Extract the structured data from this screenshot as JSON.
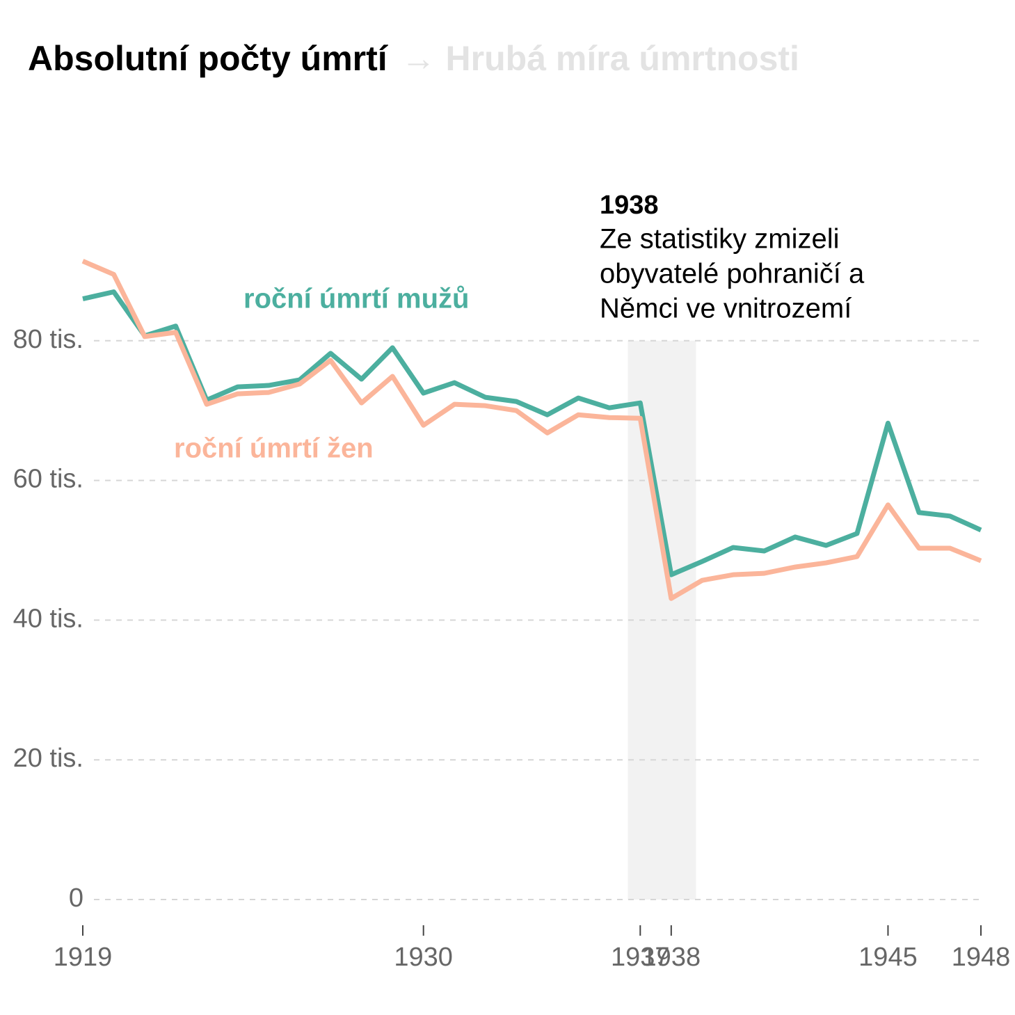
{
  "chart_data": {
    "type": "line",
    "title": "Absolutní počty úmrtí",
    "subtitle": "→ Hrubá míra úmrtnosti",
    "x": [
      1919,
      1920,
      1921,
      1922,
      1923,
      1924,
      1925,
      1926,
      1927,
      1928,
      1929,
      1930,
      1931,
      1932,
      1933,
      1934,
      1935,
      1936,
      1937,
      1938,
      1939,
      1940,
      1941,
      1942,
      1943,
      1944,
      1945,
      1946,
      1947,
      1948
    ],
    "series": [
      {
        "name": "roční úmrtí mužů",
        "color": "#4caf9f",
        "values": [
          86.0,
          87.0,
          80.7,
          82.1,
          71.5,
          73.4,
          73.6,
          74.4,
          78.2,
          74.5,
          79.0,
          72.5,
          74.0,
          71.9,
          71.3,
          69.4,
          71.8,
          70.4,
          71.1,
          46.5,
          48.4,
          50.4,
          49.9,
          51.9,
          50.7,
          52.4,
          68.2,
          55.4,
          54.9,
          52.9
        ]
      },
      {
        "name": "roční úmrtí žen",
        "color": "#fbb59a",
        "values": [
          91.4,
          89.5,
          80.6,
          81.2,
          70.9,
          72.4,
          72.6,
          73.8,
          77.2,
          71.1,
          74.9,
          67.9,
          70.9,
          70.7,
          70.0,
          66.8,
          69.4,
          69.0,
          68.9,
          43.1,
          45.7,
          46.5,
          46.7,
          47.6,
          48.2,
          49.1,
          56.5,
          50.3,
          50.3,
          48.5
        ]
      }
    ],
    "xlim": [
      1919,
      1948
    ],
    "xticks": [
      1919,
      1930,
      1937,
      1938,
      1945,
      1948
    ],
    "ylim": [
      0,
      100
    ],
    "yticks": [
      0,
      {
        "value": 20,
        "label": "20 tis."
      },
      {
        "value": 40,
        "label": "40 tis."
      },
      {
        "value": 60,
        "label": "60 tis."
      },
      {
        "value": 80,
        "label": "80 tis."
      }
    ],
    "grid": true,
    "highlight": [
      1936.6,
      1938.8
    ],
    "annotation": {
      "title": "1938",
      "lines": [
        "Ze statistiky zmizeli",
        "obyvatelé pohraničí a",
        "Němci ve vnitrozemí"
      ]
    }
  }
}
